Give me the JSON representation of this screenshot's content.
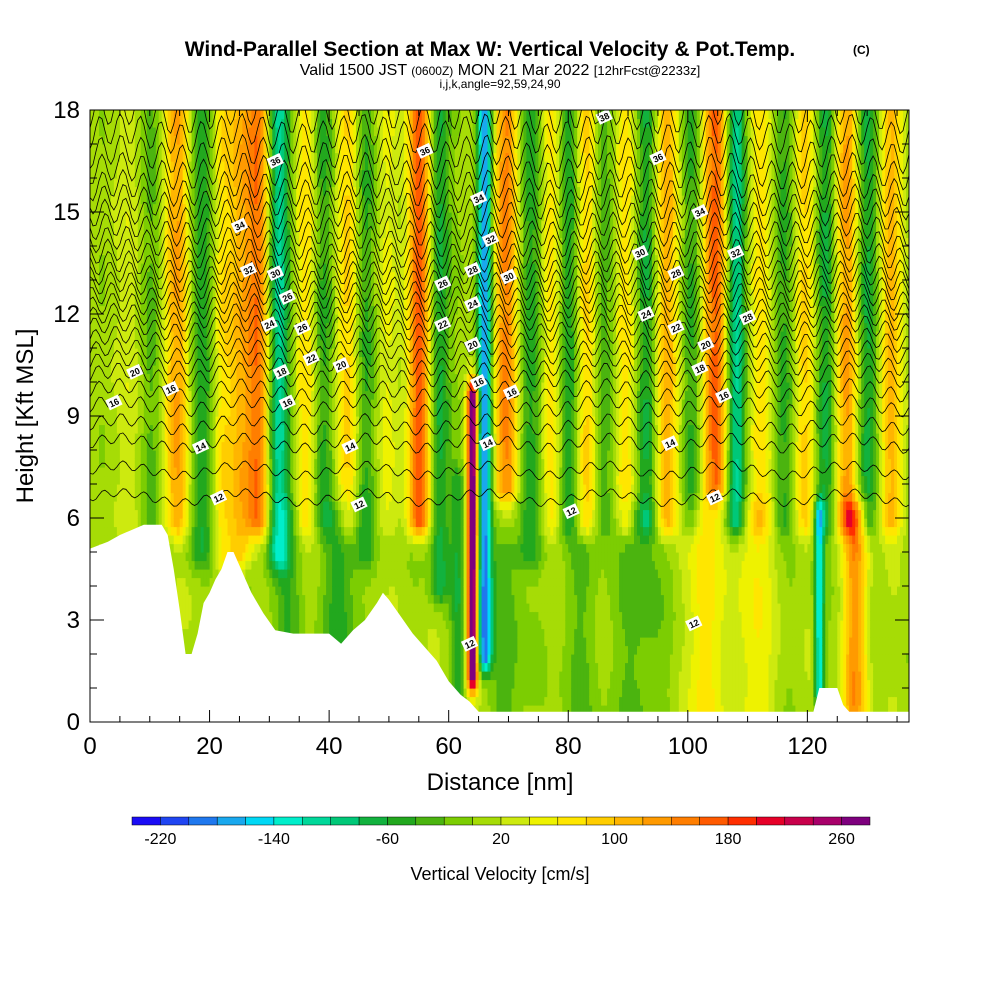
{
  "header": {
    "title": "Wind-Parallel Section at Max W: Vertical Velocity & Pot.Temp.",
    "title_tag": "(C)",
    "valid_prefix": "Valid 1500 JST",
    "valid_utc": "(0600Z)",
    "valid_date": "MON 21 Mar 2022",
    "forecast": "[12hrFcst@2233z]",
    "indices": "i,j,k,angle=92,59,24,90"
  },
  "chart_data": {
    "type": "heatmap",
    "xlabel": "Distance [nm]",
    "ylabel": "Height [Kft MSL]",
    "xlim": [
      0,
      137
    ],
    "ylim": [
      0,
      18
    ],
    "x_ticks": [
      0,
      20,
      40,
      60,
      80,
      100,
      120
    ],
    "y_ticks": [
      0,
      3,
      6,
      9,
      12,
      15,
      18
    ],
    "colorbar": {
      "label": "Vertical Velocity [cm/s]",
      "tick_labels": [
        "-220",
        "-140",
        "-60",
        "20",
        "100",
        "180",
        "260"
      ],
      "tick_values": [
        -220,
        -140,
        -60,
        20,
        100,
        180,
        260
      ],
      "range": [
        -240,
        280
      ],
      "levels": [
        -240,
        -220,
        -200,
        -180,
        -160,
        -140,
        -120,
        -100,
        -80,
        -60,
        -40,
        -20,
        0,
        20,
        40,
        60,
        80,
        100,
        120,
        140,
        160,
        180,
        200,
        220,
        240,
        260,
        280
      ],
      "colors": [
        "#1a0cf5",
        "#1f45f2",
        "#1f78ee",
        "#19a8ee",
        "#00d8f5",
        "#00eecb",
        "#00d89a",
        "#00c878",
        "#12b23e",
        "#22a81e",
        "#4bb40f",
        "#7ccd02",
        "#a6dc06",
        "#cdea0f",
        "#eef200",
        "#ffe600",
        "#ffcd00",
        "#ffb500",
        "#ff9a00",
        "#ff7e00",
        "#ff5a00",
        "#ff2e00",
        "#e60028",
        "#c8004b",
        "#a8006a",
        "#7e007e"
      ]
    },
    "terrain_kft": [
      [
        0,
        5.1
      ],
      [
        3,
        5.3
      ],
      [
        5,
        5.5
      ],
      [
        9,
        5.8
      ],
      [
        12,
        5.8
      ],
      [
        13,
        5.5
      ],
      [
        14,
        4.5
      ],
      [
        15,
        3.3
      ],
      [
        16,
        2.0
      ],
      [
        17,
        2.0
      ],
      [
        18,
        2.6
      ],
      [
        19,
        3.5
      ],
      [
        20,
        3.8
      ],
      [
        21,
        4.2
      ],
      [
        22,
        4.5
      ],
      [
        23,
        5.0
      ],
      [
        24,
        5.0
      ],
      [
        25,
        4.6
      ],
      [
        26,
        4.2
      ],
      [
        27,
        3.8
      ],
      [
        28,
        3.5
      ],
      [
        29,
        3.2
      ],
      [
        31,
        2.7
      ],
      [
        34,
        2.6
      ],
      [
        40,
        2.6
      ],
      [
        42,
        2.3
      ],
      [
        44,
        2.7
      ],
      [
        46,
        3.0
      ],
      [
        48,
        3.5
      ],
      [
        49,
        3.8
      ],
      [
        50,
        3.6
      ],
      [
        52,
        3.1
      ],
      [
        54,
        2.6
      ],
      [
        56,
        2.2
      ],
      [
        58,
        1.8
      ],
      [
        60,
        1.2
      ],
      [
        62,
        0.8
      ],
      [
        63.5,
        0.6
      ],
      [
        65,
        0.3
      ],
      [
        121,
        0.3
      ],
      [
        122,
        1.0
      ],
      [
        125,
        1.0
      ],
      [
        126,
        0.5
      ],
      [
        127,
        0.3
      ],
      [
        137,
        0.3
      ]
    ],
    "updraft_bands": [
      {
        "x": 2,
        "w": -15,
        "width": 1.2,
        "zmin": 6,
        "zmax": 18
      },
      {
        "x": 6,
        "w": 30,
        "width": 2.0,
        "zmin": 6,
        "zmax": 18
      },
      {
        "x": 10,
        "w": -40,
        "width": 1.8,
        "zmin": 6,
        "zmax": 18
      },
      {
        "x": 14.5,
        "w": 110,
        "width": 2.2,
        "zmin": 6,
        "zmax": 18
      },
      {
        "x": 18.5,
        "w": -60,
        "width": 2.2,
        "zmin": 5,
        "zmax": 18
      },
      {
        "x": 22,
        "w": 50,
        "width": 1.5,
        "zmin": 5,
        "zmax": 18
      },
      {
        "x": 25,
        "w": 90,
        "width": 2.0,
        "zmin": 5,
        "zmax": 18
      },
      {
        "x": 28,
        "w": 140,
        "width": 2.0,
        "zmin": 6,
        "zmax": 18
      },
      {
        "x": 31.5,
        "w": -120,
        "width": 1.8,
        "zmin": 5,
        "zmax": 18
      },
      {
        "x": 36,
        "w": 60,
        "width": 1.6,
        "zmin": 6,
        "zmax": 18
      },
      {
        "x": 39,
        "w": -50,
        "width": 1.6,
        "zmin": 6,
        "zmax": 18
      },
      {
        "x": 43,
        "w": 70,
        "width": 1.8,
        "zmin": 6,
        "zmax": 18
      },
      {
        "x": 46,
        "w": -50,
        "width": 1.6,
        "zmin": 5,
        "zmax": 18
      },
      {
        "x": 49.5,
        "w": 30,
        "width": 1.6,
        "zmin": 6,
        "zmax": 18
      },
      {
        "x": 55,
        "w": 170,
        "width": 1.8,
        "zmin": 6,
        "zmax": 18
      },
      {
        "x": 58.5,
        "w": -80,
        "width": 1.6,
        "zmin": 4,
        "zmax": 18
      },
      {
        "x": 61.5,
        "w": -60,
        "width": 1.2,
        "zmin": 0,
        "zmax": 7
      },
      {
        "x": 64,
        "w": 290,
        "width": 0.9,
        "zmin": 1.5,
        "zmax": 9.5
      },
      {
        "x": 66,
        "w": -200,
        "width": 1.2,
        "zmin": 2,
        "zmax": 18
      },
      {
        "x": 69.5,
        "w": 140,
        "width": 2.0,
        "zmin": 7,
        "zmax": 18
      },
      {
        "x": 73.5,
        "w": -60,
        "width": 2.0,
        "zmin": 5,
        "zmax": 18
      },
      {
        "x": 77,
        "w": 60,
        "width": 1.6,
        "zmin": 6,
        "zmax": 18
      },
      {
        "x": 80,
        "w": -70,
        "width": 1.6,
        "zmin": 6,
        "zmax": 18
      },
      {
        "x": 83,
        "w": 80,
        "width": 1.6,
        "zmin": 6,
        "zmax": 18
      },
      {
        "x": 86,
        "w": -50,
        "width": 1.6,
        "zmin": 6,
        "zmax": 18
      },
      {
        "x": 89.5,
        "w": 70,
        "width": 1.6,
        "zmin": 6,
        "zmax": 18
      },
      {
        "x": 93,
        "w": -80,
        "width": 1.6,
        "zmin": 6,
        "zmax": 18
      },
      {
        "x": 96.5,
        "w": 110,
        "width": 1.8,
        "zmin": 6,
        "zmax": 18
      },
      {
        "x": 100.5,
        "w": -60,
        "width": 1.6,
        "zmin": 6,
        "zmax": 18
      },
      {
        "x": 104.5,
        "w": 160,
        "width": 2.0,
        "zmin": 7,
        "zmax": 18
      },
      {
        "x": 108,
        "w": -120,
        "width": 1.6,
        "zmin": 6,
        "zmax": 18
      },
      {
        "x": 112,
        "w": 60,
        "width": 1.8,
        "zmin": 6,
        "zmax": 18
      },
      {
        "x": 116,
        "w": -50,
        "width": 1.6,
        "zmin": 6,
        "zmax": 18
      },
      {
        "x": 119.5,
        "w": 70,
        "width": 1.6,
        "zmin": 6,
        "zmax": 18
      },
      {
        "x": 123,
        "w": -70,
        "width": 1.6,
        "zmin": 6,
        "zmax": 18
      },
      {
        "x": 126.5,
        "w": 110,
        "width": 1.8,
        "zmin": 6,
        "zmax": 18
      },
      {
        "x": 130,
        "w": -70,
        "width": 1.6,
        "zmin": 6,
        "zmax": 18
      },
      {
        "x": 134,
        "w": 90,
        "width": 1.8,
        "zmin": 6,
        "zmax": 18
      },
      {
        "x": 33,
        "w": -40,
        "width": 2.5,
        "zmin": 1,
        "zmax": 6
      },
      {
        "x": 42,
        "w": -60,
        "width": 3.0,
        "zmin": 2,
        "zmax": 6
      },
      {
        "x": 70,
        "w": -40,
        "width": 3.0,
        "zmin": 0,
        "zmax": 5
      },
      {
        "x": 82,
        "w": -30,
        "width": 3.5,
        "zmin": 0,
        "zmax": 5
      },
      {
        "x": 92,
        "w": -40,
        "width": 4.0,
        "zmin": 0,
        "zmax": 6
      },
      {
        "x": 103,
        "w": 70,
        "width": 2.5,
        "zmin": 0,
        "zmax": 6
      },
      {
        "x": 111,
        "w": 50,
        "width": 3.0,
        "zmin": 0,
        "zmax": 6
      },
      {
        "x": 122,
        "w": -150,
        "width": 0.8,
        "zmin": 1,
        "zmax": 6
      },
      {
        "x": 128,
        "w": 120,
        "width": 2.0,
        "zmin": 0.5,
        "zmax": 6
      }
    ],
    "isentropes": [
      {
        "theta": 12,
        "z": 6.6
      },
      {
        "theta": 13,
        "z": 7.4
      },
      {
        "theta": 14,
        "z": 8.2
      },
      {
        "theta": 15,
        "z": 8.75
      },
      {
        "theta": 16,
        "z": 9.3
      },
      {
        "theta": 17,
        "z": 9.75
      },
      {
        "theta": 18,
        "z": 10.2
      },
      {
        "theta": 19,
        "z": 10.55
      },
      {
        "theta": 20,
        "z": 10.9
      },
      {
        "theta": 21,
        "z": 11.25
      },
      {
        "theta": 22,
        "z": 11.6
      },
      {
        "theta": 23,
        "z": 11.9
      },
      {
        "theta": 24,
        "z": 12.2
      },
      {
        "theta": 25,
        "z": 12.5
      },
      {
        "theta": 26,
        "z": 12.8
      },
      {
        "theta": 27,
        "z": 13.1
      },
      {
        "theta": 28,
        "z": 13.4
      },
      {
        "theta": 29,
        "z": 13.75
      },
      {
        "theta": 30,
        "z": 14.1
      },
      {
        "theta": 31,
        "z": 14.5
      },
      {
        "theta": 32,
        "z": 14.9
      },
      {
        "theta": 33,
        "z": 15.3
      },
      {
        "theta": 34,
        "z": 15.7
      },
      {
        "theta": 35,
        "z": 16.2
      },
      {
        "theta": 36,
        "z": 16.7
      },
      {
        "theta": 37,
        "z": 17.3
      },
      {
        "theta": 38,
        "z": 17.9
      }
    ],
    "isentrope_labels": [
      {
        "text": "16",
        "x": 4,
        "y": 9.4
      },
      {
        "text": "20",
        "x": 7.5,
        "y": 10.3
      },
      {
        "text": "16",
        "x": 13.5,
        "y": 9.8
      },
      {
        "text": "14",
        "x": 18.5,
        "y": 8.1
      },
      {
        "text": "12",
        "x": 21.5,
        "y": 6.6
      },
      {
        "text": "34",
        "x": 25,
        "y": 14.6
      },
      {
        "text": "32",
        "x": 26.5,
        "y": 13.3
      },
      {
        "text": "36",
        "x": 31,
        "y": 16.5
      },
      {
        "text": "30",
        "x": 31,
        "y": 13.2
      },
      {
        "text": "26",
        "x": 33,
        "y": 12.5
      },
      {
        "text": "24",
        "x": 30,
        "y": 11.7
      },
      {
        "text": "26",
        "x": 35.5,
        "y": 11.6
      },
      {
        "text": "22",
        "x": 37,
        "y": 10.7
      },
      {
        "text": "18",
        "x": 32,
        "y": 10.3
      },
      {
        "text": "16",
        "x": 33,
        "y": 9.4
      },
      {
        "text": "20",
        "x": 42,
        "y": 10.5
      },
      {
        "text": "14",
        "x": 43.5,
        "y": 8.1
      },
      {
        "text": "12",
        "x": 45,
        "y": 6.4
      },
      {
        "text": "36",
        "x": 56,
        "y": 16.8
      },
      {
        "text": "26",
        "x": 59,
        "y": 12.9
      },
      {
        "text": "22",
        "x": 59,
        "y": 11.7
      },
      {
        "text": "34",
        "x": 65,
        "y": 15.4
      },
      {
        "text": "28",
        "x": 64,
        "y": 13.3
      },
      {
        "text": "24",
        "x": 64,
        "y": 12.3
      },
      {
        "text": "20",
        "x": 64,
        "y": 11.1
      },
      {
        "text": "32",
        "x": 67,
        "y": 14.2
      },
      {
        "text": "30",
        "x": 70,
        "y": 13.1
      },
      {
        "text": "16",
        "x": 65,
        "y": 10.0
      },
      {
        "text": "16",
        "x": 70.5,
        "y": 9.7
      },
      {
        "text": "14",
        "x": 66.5,
        "y": 8.2
      },
      {
        "text": "12",
        "x": 63.5,
        "y": 2.3
      },
      {
        "text": "12",
        "x": 80.5,
        "y": 6.2
      },
      {
        "text": "38",
        "x": 86,
        "y": 17.8
      },
      {
        "text": "36",
        "x": 95,
        "y": 16.6
      },
      {
        "text": "30",
        "x": 92,
        "y": 13.8
      },
      {
        "text": "28",
        "x": 98,
        "y": 13.2
      },
      {
        "text": "24",
        "x": 93,
        "y": 12.0
      },
      {
        "text": "22",
        "x": 98,
        "y": 11.6
      },
      {
        "text": "20",
        "x": 103,
        "y": 11.1
      },
      {
        "text": "18",
        "x": 102,
        "y": 10.4
      },
      {
        "text": "34",
        "x": 102,
        "y": 15.0
      },
      {
        "text": "32",
        "x": 108,
        "y": 13.8
      },
      {
        "text": "28",
        "x": 110,
        "y": 11.9
      },
      {
        "text": "16",
        "x": 106,
        "y": 9.6
      },
      {
        "text": "14",
        "x": 97,
        "y": 8.2
      },
      {
        "text": "12",
        "x": 104.5,
        "y": 6.6
      },
      {
        "text": "12",
        "x": 101,
        "y": 2.9
      }
    ]
  }
}
